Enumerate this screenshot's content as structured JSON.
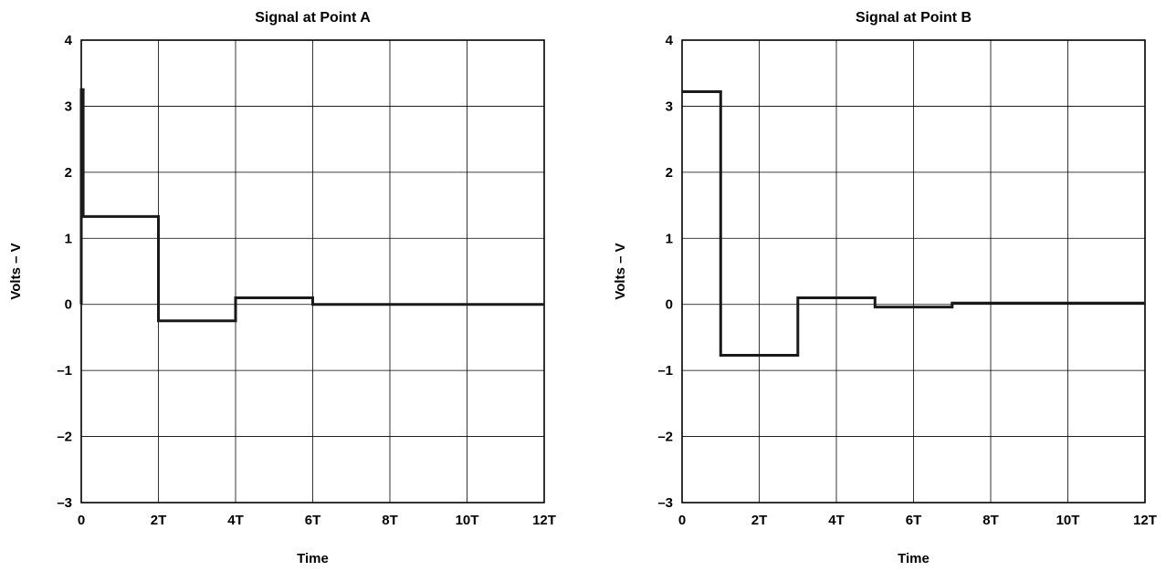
{
  "chart_data": [
    {
      "type": "line",
      "title": "Signal at Point A",
      "xlabel": "Time",
      "ylabel": "Volts – V",
      "x_unit": "T",
      "xlim": [
        0,
        12
      ],
      "ylim": [
        -3,
        4
      ],
      "x_ticks": [
        0,
        2,
        4,
        6,
        8,
        10,
        12
      ],
      "x_tick_labels": [
        "0",
        "2T",
        "4T",
        "6T",
        "8T",
        "10T",
        "12T"
      ],
      "y_ticks": [
        4,
        3,
        2,
        1,
        0,
        -1,
        -2,
        -3
      ],
      "y_tick_labels": [
        "4",
        "3",
        "2",
        "1",
        "0",
        "–1",
        "–2",
        "–3"
      ],
      "grid": true,
      "series": [
        {
          "x": [
            0,
            0,
            0.05,
            0.05,
            2,
            2,
            4,
            4,
            6,
            6,
            12
          ],
          "y": [
            0,
            3.25,
            3.25,
            1.33,
            1.33,
            -0.25,
            -0.25,
            0.1,
            0.1,
            0.0,
            0.0
          ]
        }
      ]
    },
    {
      "type": "line",
      "title": "Signal at Point B",
      "xlabel": "Time",
      "ylabel": "Volts – V",
      "x_unit": "T",
      "xlim": [
        0,
        12
      ],
      "ylim": [
        -3,
        4
      ],
      "x_ticks": [
        0,
        2,
        4,
        6,
        8,
        10,
        12
      ],
      "x_tick_labels": [
        "0",
        "2T",
        "4T",
        "6T",
        "8T",
        "10T",
        "12T"
      ],
      "y_ticks": [
        4,
        3,
        2,
        1,
        0,
        -1,
        -2,
        -3
      ],
      "y_tick_labels": [
        "4",
        "3",
        "2",
        "1",
        "0",
        "–1",
        "–2",
        "–3"
      ],
      "grid": true,
      "series": [
        {
          "x": [
            0,
            1,
            1,
            3,
            3,
            5,
            5,
            7,
            7,
            12
          ],
          "y": [
            3.22,
            3.22,
            -0.77,
            -0.77,
            0.1,
            0.1,
            -0.04,
            -0.04,
            0.02,
            0.02
          ]
        }
      ]
    }
  ]
}
